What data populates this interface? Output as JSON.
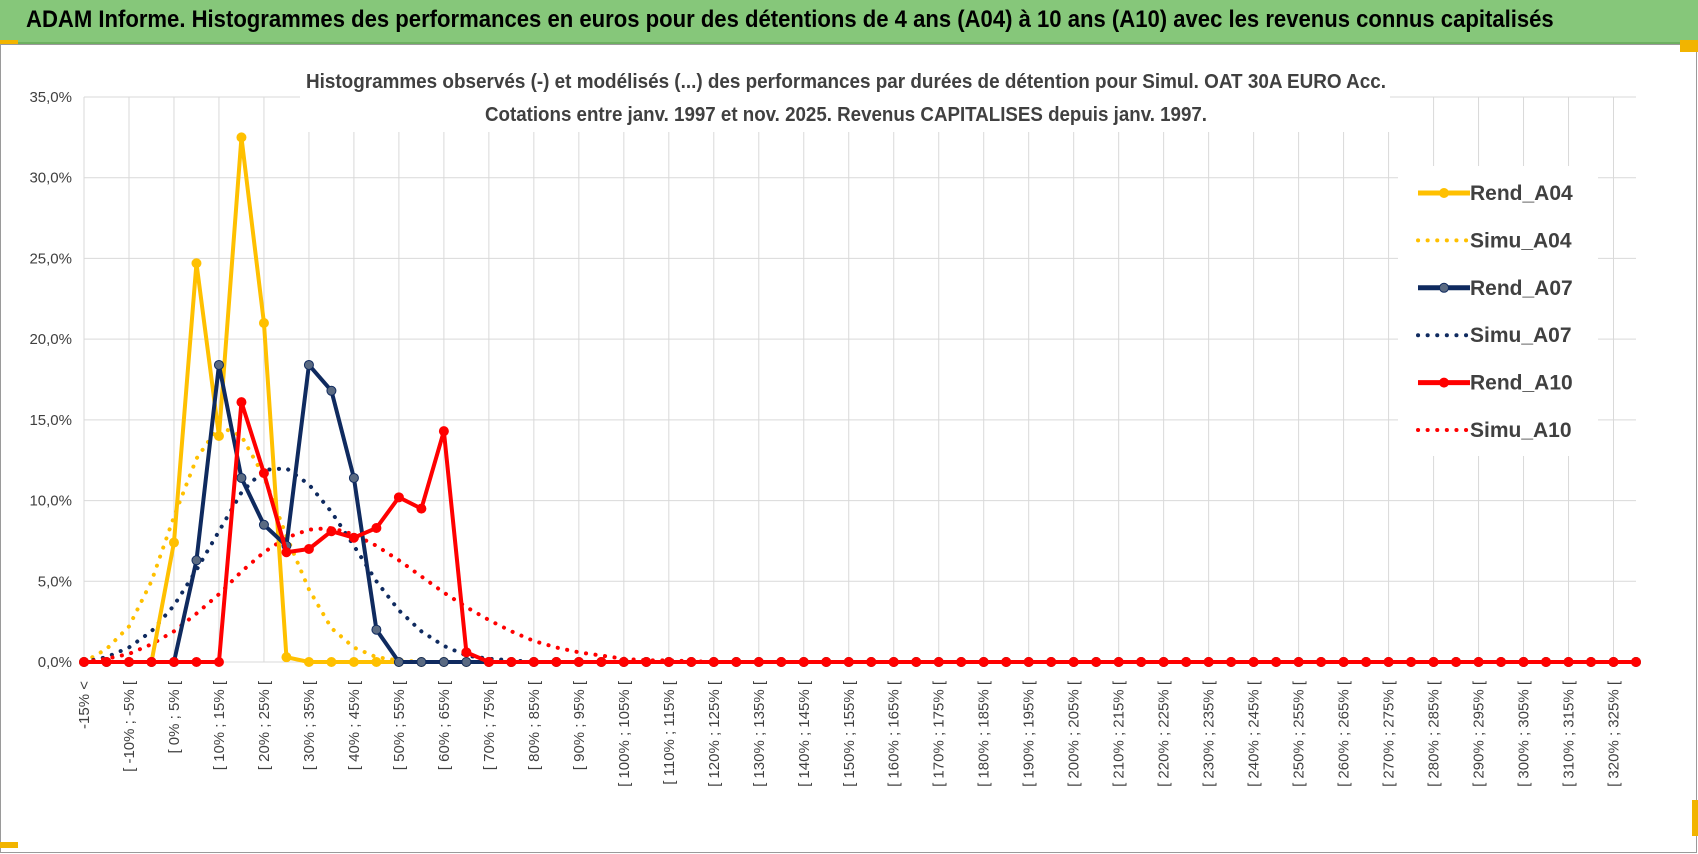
{
  "banner": {
    "text": "ADAM Informe. Histogrammes des performances en euros pour des détentions de 4 ans (A04) à 10 ans (A10) avec les revenus connus capitalisés"
  },
  "colors": {
    "banner_bg": "#86c77a",
    "a04": "#ffc000",
    "a07": "#0f2a5f",
    "a10": "#ff0000",
    "grid": "#d9d9d9",
    "corner_accent": "#f2b400"
  },
  "chart_data": {
    "type": "line",
    "title_lines": [
      "Histogrammes observés (-) et modélisés (...) des performances par durées de détention pour Simul. OAT 30A EURO Acc.",
      "Cotations entre janv. 1997 et nov. 2025. Revenus CAPITALISES depuis janv. 1997."
    ],
    "ylim": [
      0,
      35
    ],
    "yticks": [
      0,
      5,
      10,
      15,
      20,
      25,
      30,
      35
    ],
    "ytick_labels": [
      "0,0%",
      "5,0%",
      "10,0%",
      "15,0%",
      "20,0%",
      "25,0%",
      "30,0%",
      "35,0%"
    ],
    "grid": true,
    "legend_position": "right",
    "x_labels": [
      "-15% <",
      "[ -10% ; -5% [",
      "[ 0% ; 5% [",
      "[ 10% ; 15% [",
      "[ 20% ; 25% [",
      "[ 30% ; 35% [",
      "[ 40% ; 45% [",
      "[ 50% ; 55% [",
      "[ 60% ; 65% [",
      "[ 70% ; 75% [",
      "[ 80% ; 85% [",
      "[ 90% ; 95% [",
      "[ 100% ; 105% [",
      "[ 110% ; 115% [",
      "[ 120% ; 125% [",
      "[ 130% ; 135% [",
      "[ 140% ; 145% [",
      "[ 150% ; 155% [",
      "[ 160% ; 165% [",
      "[ 170% ; 175% [",
      "[ 180% ; 185% [",
      "[ 190% ; 195% [",
      "[ 200% ; 205% [",
      "[ 210% ; 215% [",
      "[ 220% ; 225% [",
      "[ 230% ; 235% [",
      "[ 240% ; 245% [",
      "[ 250% ; 255% [",
      "[ 260% ; 265% [",
      "[ 270% ; 275% [",
      "[ 280% ; 285% [",
      "[ 290% ; 295% [",
      "[ 300% ; 305% [",
      "[ 310% ; 315% [",
      "[ 320% ; 325% ["
    ],
    "category_count": 70,
    "series": [
      {
        "name": "Rend_A04",
        "style": "solid",
        "color": "#ffc000",
        "values": [
          0,
          0,
          0,
          0,
          7.4,
          24.7,
          14.0,
          32.5,
          21.0,
          0.3,
          0.0,
          0.0,
          0.0,
          0.0,
          0.0,
          0.0,
          0.0,
          0.0,
          0.0,
          0.0,
          0,
          0,
          0,
          0,
          0,
          0,
          0,
          0,
          0,
          0,
          0,
          0,
          0,
          0,
          0,
          0,
          0,
          0,
          0,
          0,
          0,
          0,
          0,
          0,
          0,
          0,
          0,
          0,
          0,
          0,
          0,
          0,
          0,
          0,
          0,
          0,
          0,
          0,
          0,
          0,
          0,
          0,
          0,
          0,
          0,
          0,
          0,
          0,
          0,
          0
        ]
      },
      {
        "name": "Simu_A04",
        "style": "dotted",
        "color": "#ffc000",
        "values": [
          0,
          0.8,
          2.2,
          5.0,
          9.0,
          12.6,
          14.6,
          14.0,
          11.5,
          7.8,
          4.5,
          2.1,
          0.9,
          0.3,
          0.1,
          0.0,
          0,
          0,
          0,
          0,
          0,
          0,
          0,
          0,
          0,
          0,
          0,
          0,
          0,
          0,
          0,
          0,
          0,
          0,
          0,
          0,
          0,
          0,
          0,
          0,
          0,
          0,
          0,
          0,
          0,
          0,
          0,
          0,
          0,
          0,
          0,
          0,
          0,
          0,
          0,
          0,
          0,
          0,
          0,
          0,
          0,
          0,
          0,
          0,
          0,
          0,
          0,
          0,
          0,
          0
        ]
      },
      {
        "name": "Rend_A07",
        "style": "solid",
        "color": "#0f2a5f",
        "values": [
          0,
          0,
          0,
          0,
          0,
          6.3,
          18.4,
          11.4,
          8.5,
          7.2,
          18.4,
          16.8,
          11.4,
          2.0,
          0.0,
          0.0,
          0.0,
          0.0,
          0.0,
          0.0,
          0,
          0,
          0,
          0,
          0,
          0,
          0,
          0,
          0,
          0,
          0,
          0,
          0,
          0,
          0,
          0,
          0,
          0,
          0,
          0,
          0,
          0,
          0,
          0,
          0,
          0,
          0,
          0,
          0,
          0,
          0,
          0,
          0,
          0,
          0,
          0,
          0,
          0,
          0,
          0,
          0,
          0,
          0,
          0,
          0,
          0,
          0,
          0,
          0,
          0
        ]
      },
      {
        "name": "Simu_A07",
        "style": "dotted",
        "color": "#0f2a5f",
        "values": [
          0,
          0.3,
          0.9,
          1.9,
          3.5,
          5.7,
          8.1,
          10.5,
          11.9,
          12.0,
          11.0,
          9.3,
          7.2,
          5.0,
          3.2,
          1.9,
          1.0,
          0.4,
          0.2,
          0.1,
          0,
          0,
          0,
          0,
          0,
          0,
          0,
          0,
          0,
          0,
          0,
          0,
          0,
          0,
          0,
          0,
          0,
          0,
          0,
          0,
          0,
          0,
          0,
          0,
          0,
          0,
          0,
          0,
          0,
          0,
          0,
          0,
          0,
          0,
          0,
          0,
          0,
          0,
          0,
          0,
          0,
          0,
          0,
          0,
          0,
          0,
          0,
          0,
          0,
          0
        ]
      },
      {
        "name": "Rend_A10",
        "style": "solid",
        "color": "#ff0000",
        "values": [
          0,
          0,
          0,
          0,
          0,
          0,
          0,
          16.1,
          11.7,
          6.8,
          7.0,
          8.1,
          7.7,
          8.3,
          10.2,
          9.5,
          14.3,
          0.6,
          0.0,
          0.0,
          0,
          0,
          0,
          0,
          0,
          0,
          0,
          0,
          0,
          0,
          0,
          0,
          0,
          0,
          0,
          0,
          0,
          0,
          0,
          0,
          0,
          0,
          0,
          0,
          0,
          0,
          0,
          0,
          0,
          0,
          0,
          0,
          0,
          0,
          0,
          0,
          0,
          0,
          0,
          0,
          0,
          0,
          0,
          0,
          0,
          0,
          0,
          0,
          0,
          0
        ]
      },
      {
        "name": "Simu_A10",
        "style": "dotted",
        "color": "#ff0000",
        "values": [
          0,
          0.2,
          0.5,
          1.1,
          1.9,
          3.0,
          4.2,
          5.6,
          6.8,
          7.7,
          8.2,
          8.3,
          7.9,
          7.2,
          6.3,
          5.3,
          4.3,
          3.4,
          2.6,
          1.9,
          1.3,
          0.9,
          0.6,
          0.4,
          0.2,
          0.1,
          0.1,
          0.05,
          0,
          0,
          0,
          0,
          0,
          0,
          0,
          0,
          0,
          0,
          0,
          0,
          0,
          0,
          0,
          0,
          0,
          0,
          0,
          0,
          0,
          0,
          0,
          0,
          0,
          0,
          0,
          0,
          0,
          0,
          0,
          0,
          0,
          0,
          0,
          0,
          0,
          0,
          0,
          0,
          0,
          0
        ]
      }
    ]
  }
}
